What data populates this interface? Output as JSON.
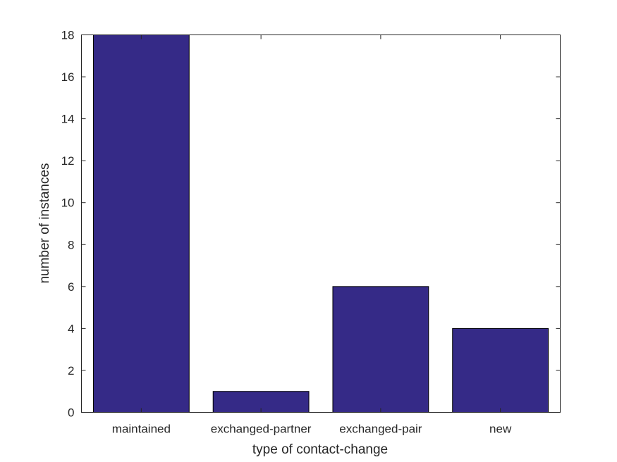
{
  "chart_data": {
    "type": "bar",
    "categories": [
      "maintained",
      "exchanged-partner",
      "exchanged-pair",
      "new"
    ],
    "values": [
      18,
      1,
      6,
      4
    ],
    "title": "",
    "xlabel": "type of contact-change",
    "ylabel": "number of instances",
    "ylim": [
      0,
      18
    ],
    "yticks": [
      "0",
      "2",
      "4",
      "6",
      "8",
      "10",
      "12",
      "14",
      "16",
      "18"
    ],
    "grid": false,
    "bar_color": "#352a87"
  }
}
